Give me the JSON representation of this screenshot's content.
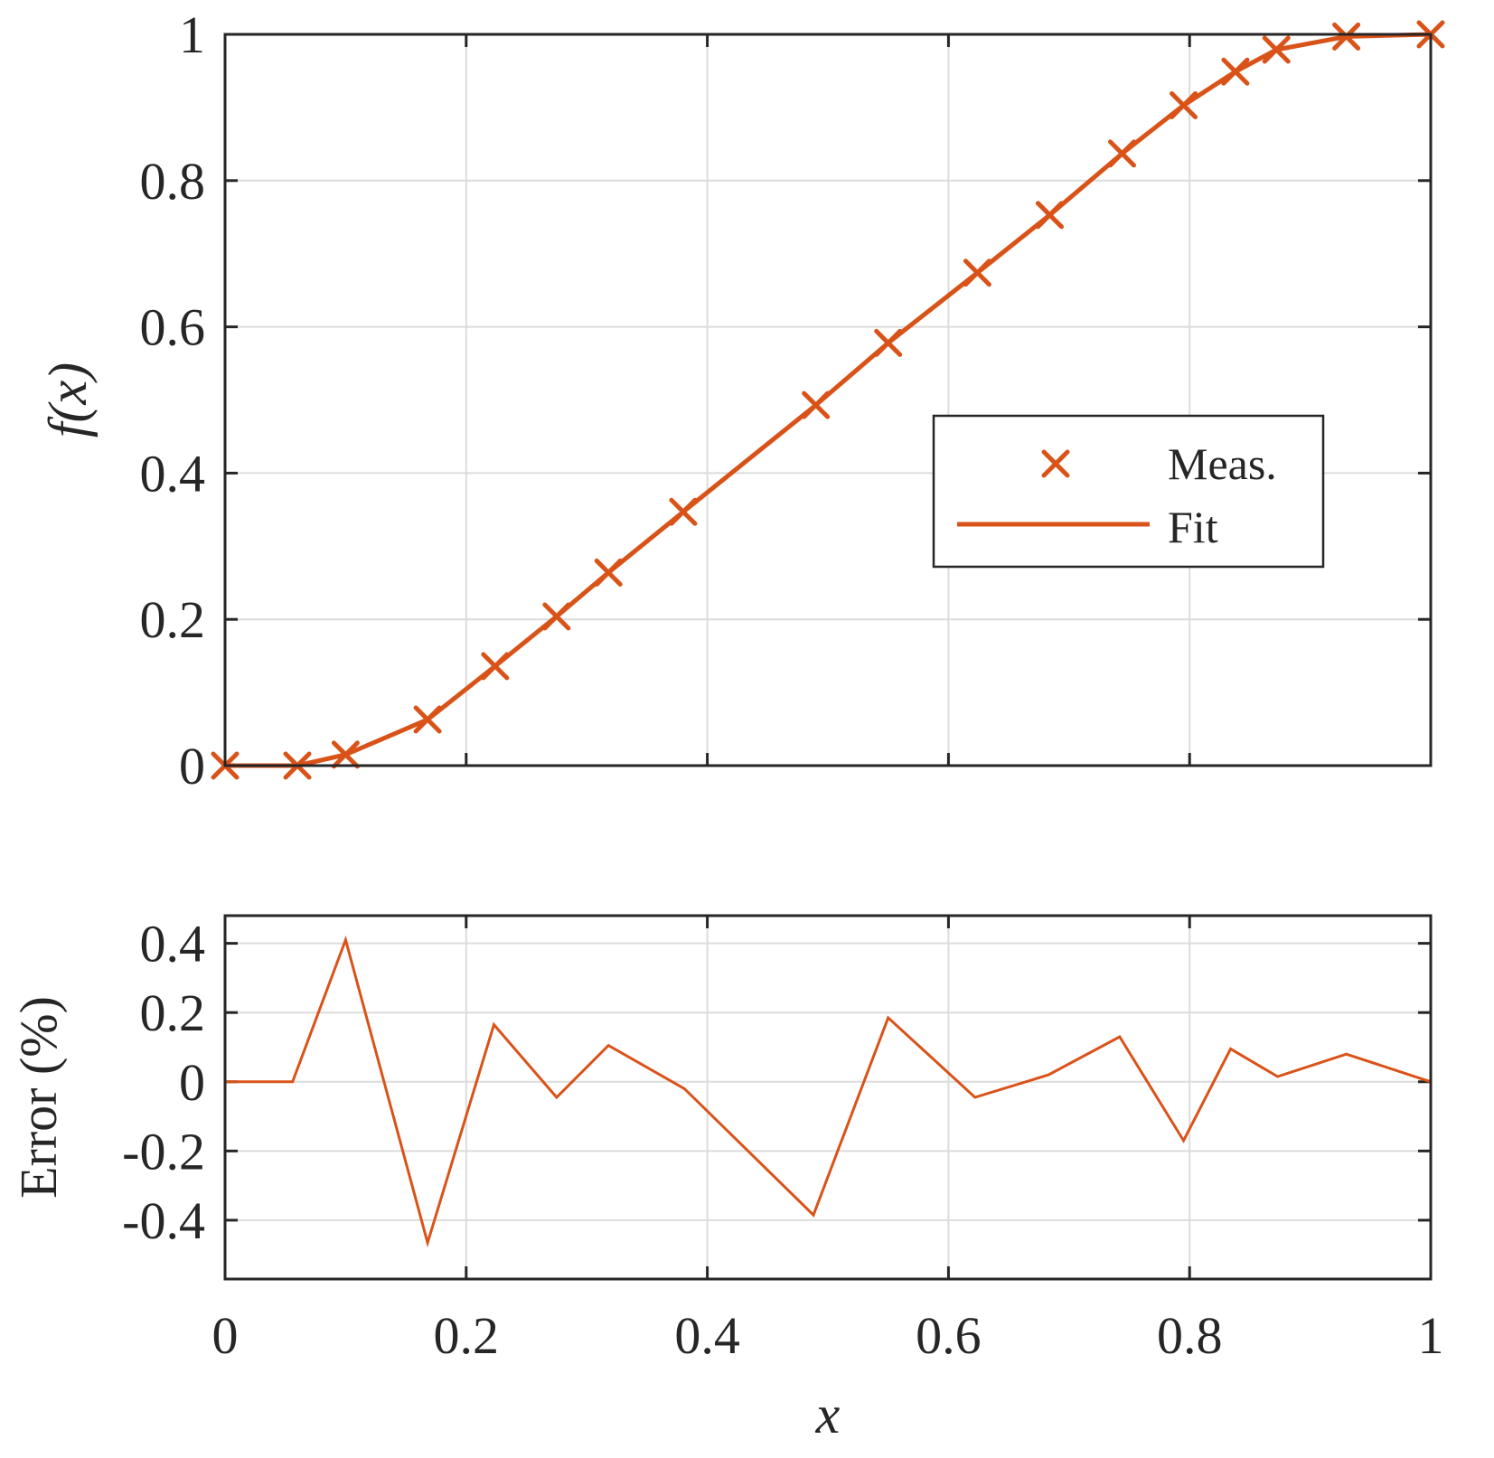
{
  "chart_data": [
    {
      "type": "line",
      "ylabel": "f(x)",
      "xlim": [
        0,
        1
      ],
      "ylim": [
        0,
        1
      ],
      "xticks": [
        "0",
        "0.2",
        "0.4",
        "0.6",
        "0.8",
        "1"
      ],
      "xtick_values": [
        0,
        0.2,
        0.4,
        0.6,
        0.8,
        1
      ],
      "yticks": [
        "0",
        "0.2",
        "0.4",
        "0.6",
        "0.8",
        "1"
      ],
      "ytick_values": [
        0,
        0.2,
        0.4,
        0.6,
        0.8,
        1
      ],
      "grid": true,
      "legend_position": "middle-right",
      "series": [
        {
          "name": "Meas.",
          "marker": "x",
          "color": "#D95319",
          "x": [
            0,
            0.06,
            0.1,
            0.168,
            0.224,
            0.275,
            0.318,
            0.38,
            0.49,
            0.55,
            0.624,
            0.684,
            0.744,
            0.795,
            0.838,
            0.872,
            0.93,
            1.0
          ],
          "y": [
            0,
            0,
            0.015,
            0.063,
            0.136,
            0.204,
            0.264,
            0.347,
            0.493,
            0.578,
            0.674,
            0.753,
            0.837,
            0.903,
            0.949,
            0.979,
            0.997,
            1.0
          ]
        },
        {
          "name": "Fit",
          "line": "solid",
          "color": "#D95319",
          "x": [
            0,
            0.06,
            0.1,
            0.168,
            0.224,
            0.275,
            0.318,
            0.38,
            0.49,
            0.55,
            0.624,
            0.684,
            0.744,
            0.795,
            0.838,
            0.872,
            0.93,
            1.0
          ],
          "y": [
            0,
            0,
            0.015,
            0.063,
            0.136,
            0.204,
            0.264,
            0.347,
            0.493,
            0.578,
            0.674,
            0.753,
            0.837,
            0.903,
            0.949,
            0.979,
            0.997,
            1.0
          ]
        }
      ]
    },
    {
      "type": "line",
      "xlabel": "x",
      "ylabel": "Error (%)",
      "xlim": [
        0,
        1
      ],
      "ylim": [
        -0.57,
        0.48
      ],
      "xticks": [
        "0",
        "0.2",
        "0.4",
        "0.6",
        "0.8",
        "1"
      ],
      "xtick_values": [
        0,
        0.2,
        0.4,
        0.6,
        0.8,
        1
      ],
      "yticks": [
        "0.4",
        "0.2",
        "0",
        "-0.2",
        "-0.4"
      ],
      "ytick_values": [
        0.4,
        0.2,
        0,
        -0.2,
        -0.4
      ],
      "grid": true,
      "series": [
        {
          "color": "#D95319",
          "x": [
            0,
            0.056,
            0.1,
            0.168,
            0.223,
            0.275,
            0.318,
            0.381,
            0.488,
            0.55,
            0.622,
            0.683,
            0.742,
            0.795,
            0.834,
            0.873,
            0.93,
            1.0
          ],
          "y": [
            0,
            0,
            0.41,
            -0.465,
            0.165,
            -0.045,
            0.105,
            -0.02,
            -0.385,
            0.185,
            -0.045,
            0.02,
            0.13,
            -0.17,
            0.095,
            0.015,
            0.08,
            0
          ]
        }
      ]
    }
  ]
}
